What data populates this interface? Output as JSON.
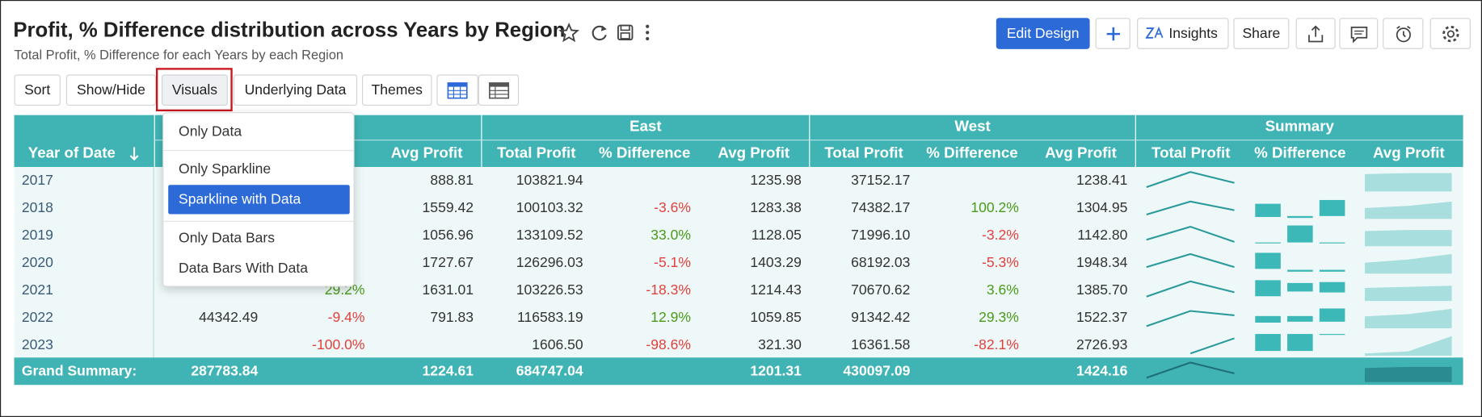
{
  "header": {
    "title": "Profit, % Difference distribution across Years by Region",
    "subtitle": "Total Profit, % Difference for each Years by each Region"
  },
  "actions": [
    "Edit Design",
    "Insights",
    "Share"
  ],
  "toolbar": [
    "Sort",
    "Show/Hide",
    "Visuals",
    "Underlying Data",
    "Themes"
  ],
  "table": {
    "groups": [
      null,
      "East",
      "West",
      "Summary"
    ],
    "columns": [
      "Year of Date",
      null,
      null,
      "Avg Profit",
      "Total Profit",
      "% Difference",
      "Avg Profit",
      "Total Profit",
      "% Difference",
      "Avg Profit",
      "Total Profit",
      "% Difference",
      "Avg Profit"
    ],
    "rows": [
      {
        "label": "2017",
        "cells": [
          null,
          null,
          "888.81",
          "103821.94",
          null,
          "1235.98",
          "37152.17",
          null,
          "1238.41"
        ]
      },
      {
        "label": "2018",
        "cells": [
          null,
          null,
          "1559.42",
          "100103.32",
          "-3.6%",
          "1283.38",
          "74382.17",
          "100.2%",
          "1304.95"
        ]
      },
      {
        "label": "2019",
        "cells": [
          null,
          null,
          "1056.96",
          "133109.52",
          "33.0%",
          "1128.05",
          "71996.10",
          "-3.2%",
          "1142.80"
        ]
      },
      {
        "label": "2020",
        "cells": [
          null,
          null,
          "1727.67",
          "126296.03",
          "-5.1%",
          "1403.29",
          "68192.03",
          "-5.3%",
          "1948.34"
        ]
      },
      {
        "label": "2021",
        "cells": [
          null,
          "29.2%",
          "1631.01",
          "103226.53",
          "-18.3%",
          "1214.43",
          "70670.62",
          "3.6%",
          "1385.70"
        ]
      },
      {
        "label": "2022",
        "cells": [
          "44342.49",
          "-9.4%",
          "791.83",
          "116583.19",
          "12.9%",
          "1059.85",
          "91342.42",
          "29.3%",
          "1522.37"
        ]
      },
      {
        "label": "2023",
        "cells": [
          null,
          "-100.0%",
          null,
          "1606.50",
          "-98.6%",
          "321.30",
          "16361.58",
          "-82.1%",
          "2726.93"
        ]
      }
    ],
    "total": {
      "label": "Grand Summary:",
      "cells": [
        "287783.84",
        null,
        "1224.61",
        "684747.04",
        null,
        "1201.31",
        "430097.09",
        null,
        "1424.16"
      ]
    }
  },
  "menu": {
    "items": [
      "Only Data",
      "Only Sparkline",
      "Sparkline with Data",
      "Only Data Bars",
      "Data Bars With Data"
    ],
    "selected": 2
  }
}
